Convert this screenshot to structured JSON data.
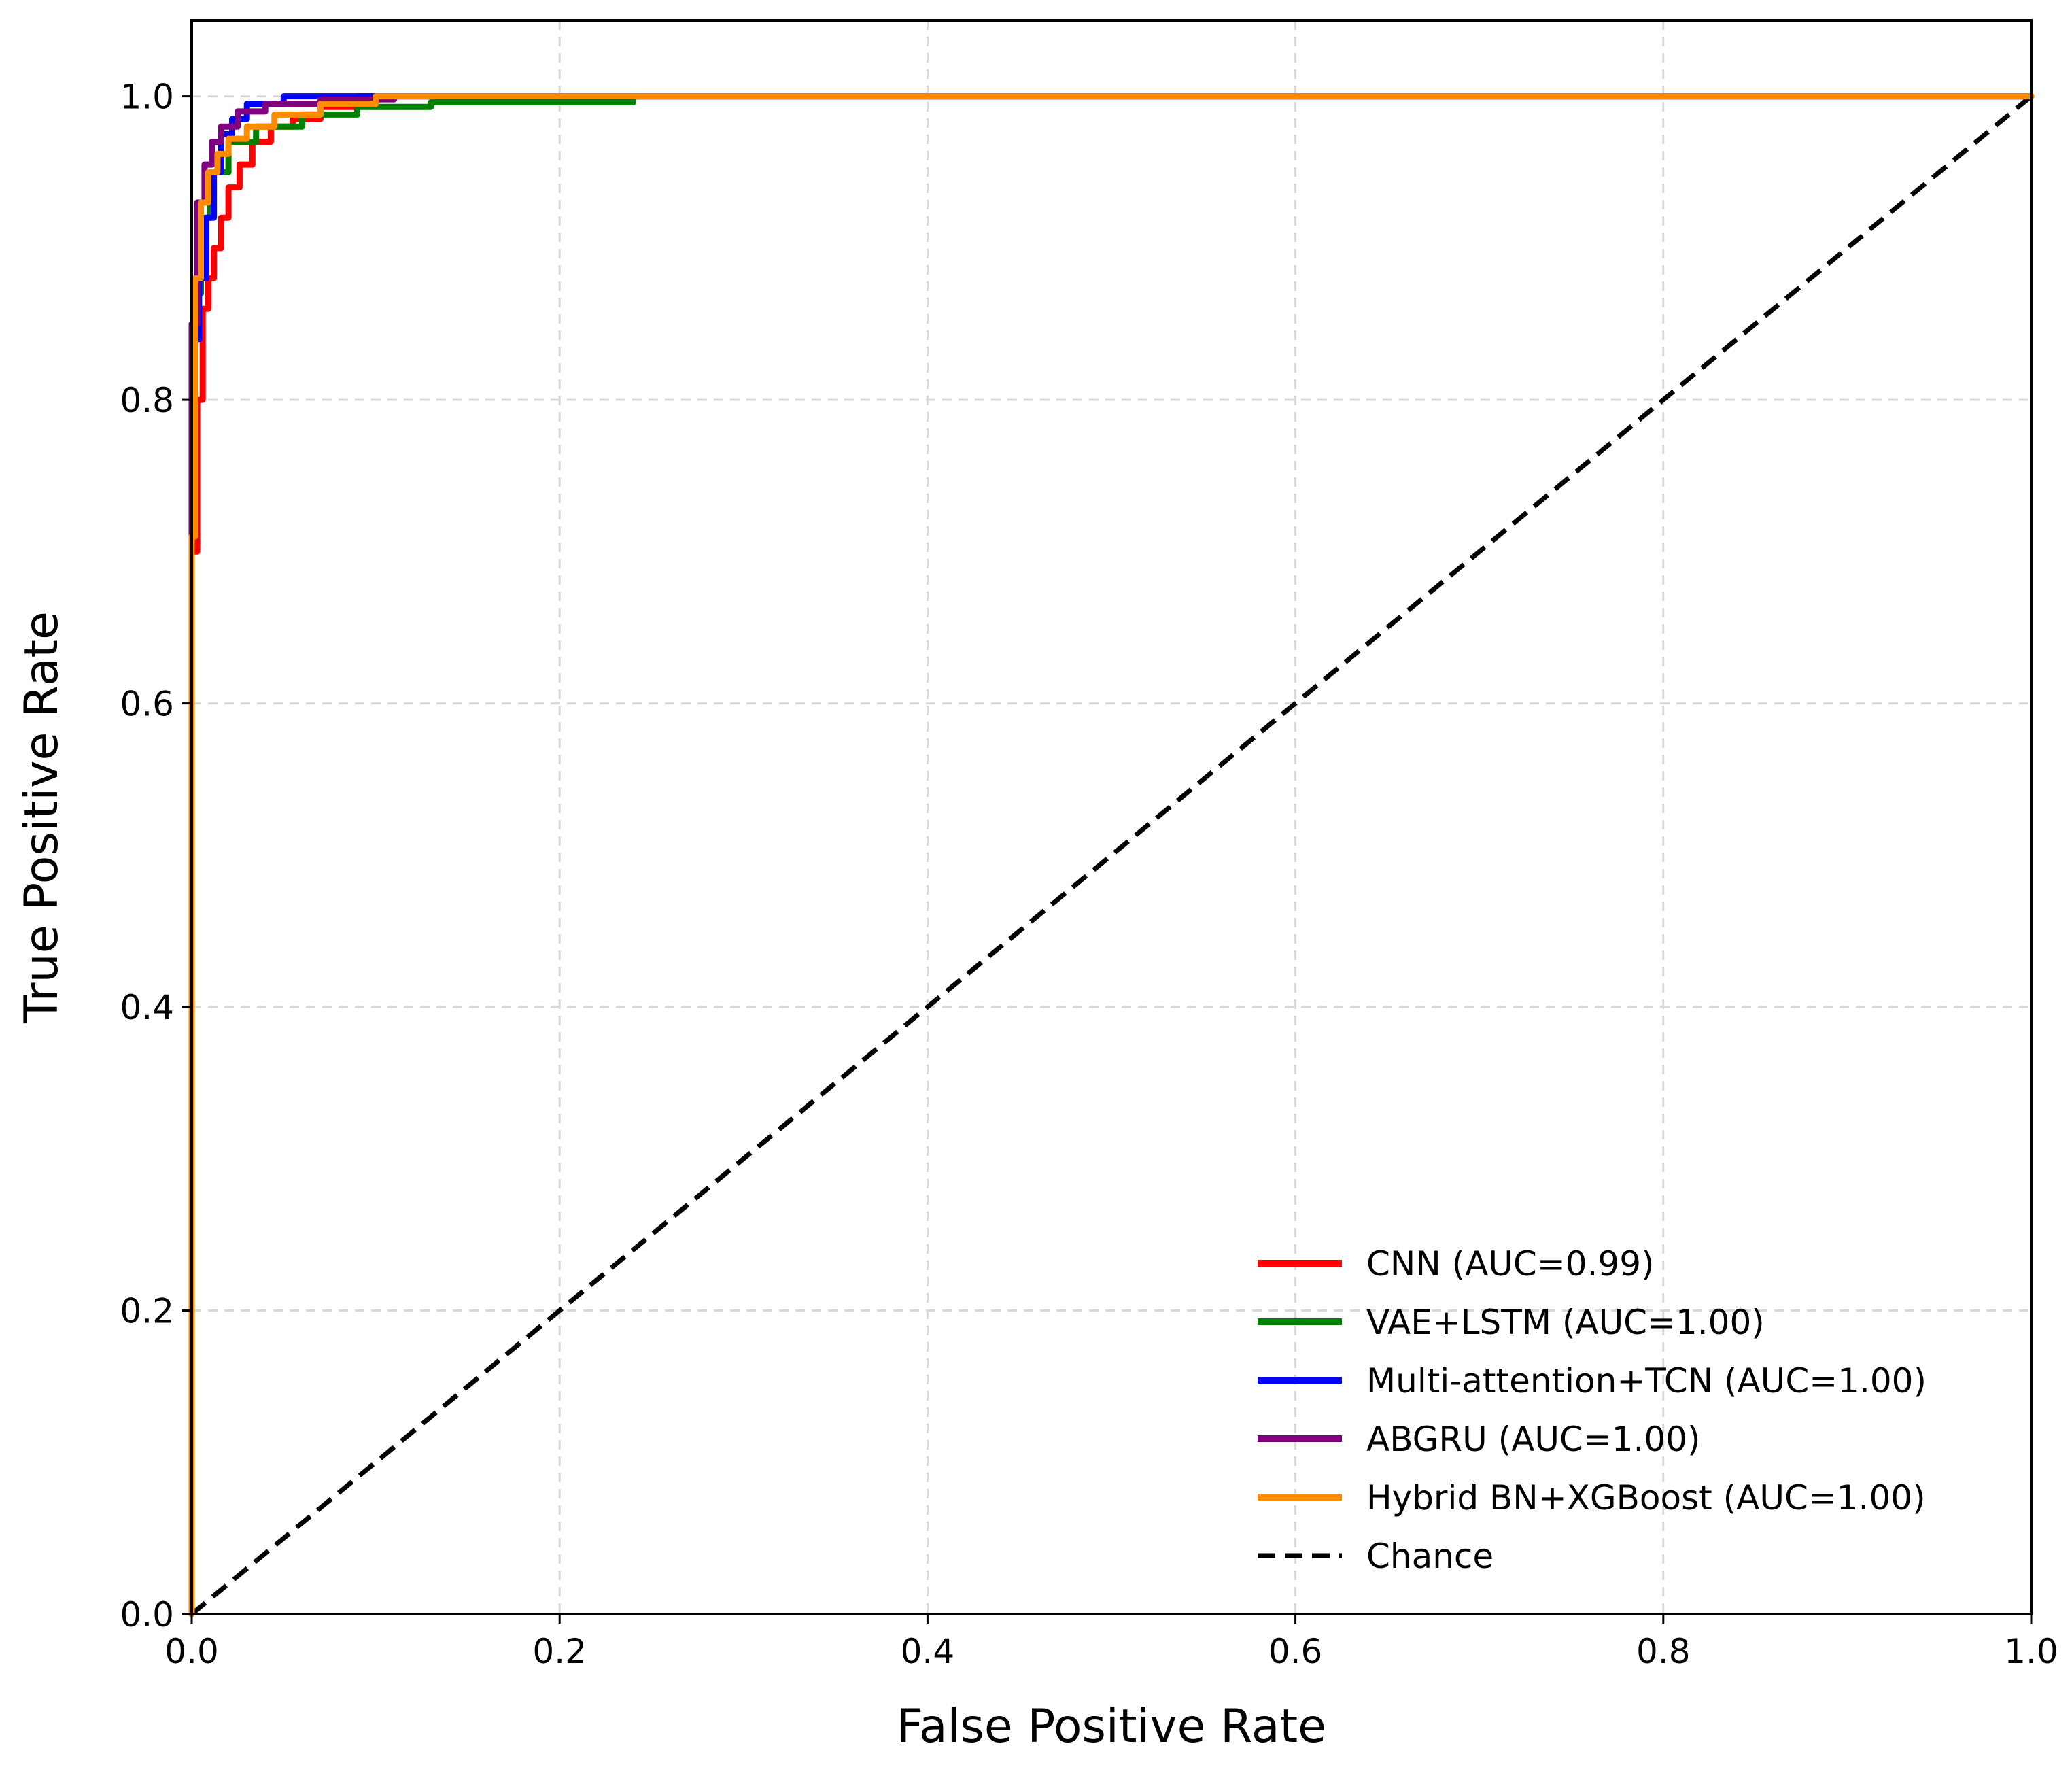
{
  "chart_data": {
    "type": "line",
    "title": "",
    "xlabel": "False Positive Rate",
    "ylabel": "True Positive Rate",
    "xlim": [
      0.0,
      1.0
    ],
    "ylim": [
      0.0,
      1.05
    ],
    "xticks": [
      "0.0",
      "0.2",
      "0.4",
      "0.6",
      "0.8",
      "1.0"
    ],
    "yticks": [
      "0.0",
      "0.2",
      "0.4",
      "0.6",
      "0.8",
      "1.0"
    ],
    "grid": true,
    "legend_position": "lower-right",
    "series": [
      {
        "name": "CNN (AUC=0.99)",
        "color": "#ff0000",
        "x": [
          0.0,
          0.0,
          0.003,
          0.003,
          0.006,
          0.006,
          0.009,
          0.009,
          0.012,
          0.012,
          0.016,
          0.016,
          0.02,
          0.02,
          0.026,
          0.026,
          0.033,
          0.033,
          0.043,
          0.043,
          0.055,
          0.055,
          0.07,
          0.07,
          0.09,
          0.09,
          1.0
        ],
        "y": [
          0.0,
          0.7,
          0.7,
          0.8,
          0.8,
          0.86,
          0.86,
          0.88,
          0.88,
          0.9,
          0.9,
          0.92,
          0.92,
          0.94,
          0.94,
          0.955,
          0.955,
          0.97,
          0.97,
          0.98,
          0.98,
          0.985,
          0.985,
          0.993,
          0.993,
          1.0,
          1.0
        ]
      },
      {
        "name": "VAE+LSTM (AUC=1.00)",
        "color": "#008000",
        "x": [
          0.0,
          0.0,
          0.002,
          0.002,
          0.005,
          0.005,
          0.01,
          0.01,
          0.02,
          0.02,
          0.035,
          0.035,
          0.06,
          0.06,
          0.09,
          0.09,
          0.13,
          0.13,
          0.24,
          0.24,
          1.0
        ],
        "y": [
          0.0,
          0.71,
          0.71,
          0.87,
          0.87,
          0.92,
          0.92,
          0.95,
          0.95,
          0.97,
          0.97,
          0.98,
          0.98,
          0.988,
          0.988,
          0.993,
          0.993,
          0.996,
          0.996,
          1.0,
          1.0
        ]
      },
      {
        "name": "Multi-attention+TCN (AUC=1.00)",
        "color": "#0000ff",
        "x": [
          0.0,
          0.0,
          0.004,
          0.004,
          0.008,
          0.008,
          0.012,
          0.012,
          0.016,
          0.016,
          0.022,
          0.022,
          0.03,
          0.03,
          0.05,
          0.05,
          1.0
        ],
        "y": [
          0.0,
          0.84,
          0.84,
          0.88,
          0.88,
          0.92,
          0.92,
          0.95,
          0.95,
          0.975,
          0.975,
          0.985,
          0.985,
          0.995,
          0.995,
          1.0,
          1.0
        ]
      },
      {
        "name": "ABGRU (AUC=1.00)",
        "color": "#800080",
        "x": [
          0.0,
          0.0,
          0.003,
          0.003,
          0.007,
          0.007,
          0.011,
          0.011,
          0.016,
          0.016,
          0.025,
          0.025,
          0.04,
          0.04,
          0.07,
          0.07,
          0.11,
          0.11,
          1.0
        ],
        "y": [
          0.0,
          0.85,
          0.85,
          0.93,
          0.93,
          0.955,
          0.955,
          0.97,
          0.97,
          0.98,
          0.98,
          0.99,
          0.99,
          0.995,
          0.995,
          0.998,
          0.998,
          1.0,
          1.0
        ]
      },
      {
        "name": "Hybrid BN+XGBoost (AUC=1.00)",
        "color": "#ff8c00",
        "x": [
          0.0,
          0.0,
          0.002,
          0.002,
          0.005,
          0.005,
          0.009,
          0.009,
          0.014,
          0.014,
          0.02,
          0.02,
          0.03,
          0.03,
          0.045,
          0.045,
          0.07,
          0.07,
          0.1,
          0.1,
          1.0
        ],
        "y": [
          0.0,
          0.71,
          0.71,
          0.88,
          0.88,
          0.93,
          0.93,
          0.95,
          0.95,
          0.962,
          0.962,
          0.972,
          0.972,
          0.98,
          0.98,
          0.988,
          0.988,
          0.995,
          0.995,
          1.0,
          1.0
        ]
      },
      {
        "name": "Chance",
        "color": "#000000",
        "dashed": true,
        "x": [
          0.0,
          1.0
        ],
        "y": [
          0.0,
          1.0
        ]
      }
    ]
  }
}
